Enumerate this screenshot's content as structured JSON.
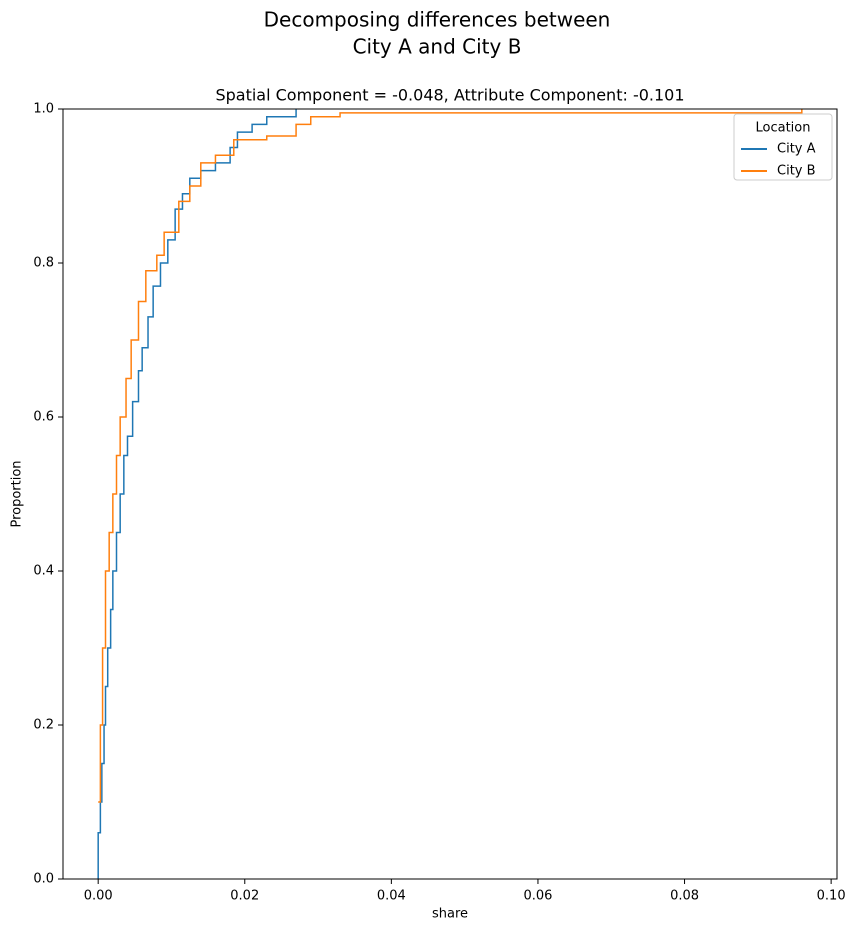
{
  "chart_data": {
    "type": "ecdf",
    "title": [
      "Decomposing differences between",
      "City A and City B"
    ],
    "subtitle": "Spatial Component = -0.048, Attribute Component: -0.101",
    "x_label": "share",
    "y_label": "Proportion",
    "xlim": [
      -0.0048,
      0.1008
    ],
    "ylim": [
      0,
      1
    ],
    "xticks": [
      {
        "value": 0,
        "label": "0.00"
      },
      {
        "value": 0.02,
        "label": "0.02"
      },
      {
        "value": 0.04,
        "label": "0.04"
      },
      {
        "value": 0.06,
        "label": "0.06"
      },
      {
        "value": 0.08,
        "label": "0.08"
      },
      {
        "value": 0.1,
        "label": "0.10"
      }
    ],
    "yticks": [
      {
        "value": 0,
        "label": "0.0"
      },
      {
        "value": 0.2,
        "label": "0.2"
      },
      {
        "value": 0.4,
        "label": "0.4"
      },
      {
        "value": 0.6,
        "label": "0.6"
      },
      {
        "value": 0.8,
        "label": "0.8"
      },
      {
        "value": 1,
        "label": "1.0"
      }
    ],
    "grid": false,
    "legend_title": "Location",
    "legend_position": "upper right",
    "series": [
      {
        "name": "City A",
        "color": "#1f77b4",
        "x": [
          0,
          0,
          0.0003,
          0.0005,
          0.0008,
          0.001,
          0.0013,
          0.0017,
          0.002,
          0.0025,
          0.003,
          0.0035,
          0.004,
          0.0047,
          0.0055,
          0.006,
          0.0068,
          0.0075,
          0.0085,
          0.0095,
          0.0105,
          0.0115,
          0.0125,
          0.014,
          0.016,
          0.018,
          0.019,
          0.021,
          0.023,
          0.027
        ],
        "values": [
          0,
          0.06,
          0.1,
          0.15,
          0.2,
          0.25,
          0.3,
          0.35,
          0.4,
          0.45,
          0.5,
          0.55,
          0.575,
          0.62,
          0.66,
          0.69,
          0.73,
          0.77,
          0.8,
          0.83,
          0.87,
          0.89,
          0.91,
          0.92,
          0.93,
          0.95,
          0.97,
          0.98,
          0.99,
          1.0
        ]
      },
      {
        "name": "City B",
        "color": "#ff7f0e",
        "x": [
          0,
          0.0003,
          0.0006,
          0.001,
          0.0015,
          0.002,
          0.0025,
          0.003,
          0.0038,
          0.0045,
          0.0055,
          0.0065,
          0.008,
          0.009,
          0.011,
          0.0125,
          0.014,
          0.016,
          0.0185,
          0.023,
          0.027,
          0.029,
          0.033,
          0.096
        ],
        "values": [
          0.1,
          0.2,
          0.3,
          0.4,
          0.45,
          0.5,
          0.55,
          0.6,
          0.65,
          0.7,
          0.75,
          0.79,
          0.81,
          0.84,
          0.88,
          0.9,
          0.93,
          0.94,
          0.96,
          0.965,
          0.98,
          0.99,
          0.995,
          1.0
        ]
      }
    ]
  }
}
